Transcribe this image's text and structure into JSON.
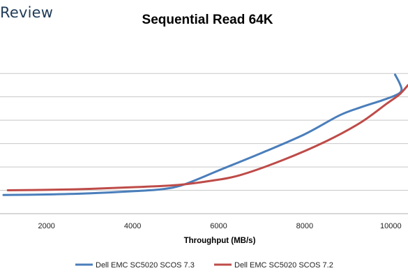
{
  "brand": {
    "text": "Review"
  },
  "chart_data": {
    "type": "line",
    "title": "Sequential Read 64K",
    "xlabel": "Throughput (MB/s)",
    "ylabel": "",
    "xlim": [
      1000,
      10400
    ],
    "x_ticks": [
      2000,
      4000,
      6000,
      8000,
      10000
    ],
    "ylim": [
      0,
      7.5
    ],
    "y_gridlines": [
      1,
      2,
      3,
      4,
      5,
      6
    ],
    "y_tick_labels_visible": false,
    "grid": "horizontal",
    "legend_position": "bottom",
    "series": [
      {
        "name": "Dell EMC SC5020 SCOS 7.3",
        "color": "#4a7ebb",
        "points": [
          [
            1000,
            0.8
          ],
          [
            2000,
            0.82
          ],
          [
            3000,
            0.87
          ],
          [
            4000,
            0.96
          ],
          [
            4700,
            1.05
          ],
          [
            5200,
            1.25
          ],
          [
            6000,
            1.85
          ],
          [
            7000,
            2.6
          ],
          [
            8000,
            3.4
          ],
          [
            8800,
            4.2
          ],
          [
            9300,
            4.55
          ],
          [
            9800,
            4.85
          ],
          [
            10150,
            5.1
          ],
          [
            10250,
            5.3
          ],
          [
            10200,
            5.6
          ],
          [
            10100,
            5.95
          ]
        ]
      },
      {
        "name": "Dell EMC SC5020 SCOS 7.2",
        "color": "#be4b48",
        "points": [
          [
            1100,
            1.0
          ],
          [
            2000,
            1.02
          ],
          [
            3000,
            1.06
          ],
          [
            4000,
            1.13
          ],
          [
            5000,
            1.22
          ],
          [
            5800,
            1.4
          ],
          [
            6500,
            1.65
          ],
          [
            7500,
            2.3
          ],
          [
            8500,
            3.1
          ],
          [
            9300,
            3.9
          ],
          [
            9900,
            4.7
          ],
          [
            10200,
            5.1
          ],
          [
            10400,
            5.5
          ]
        ]
      }
    ]
  }
}
